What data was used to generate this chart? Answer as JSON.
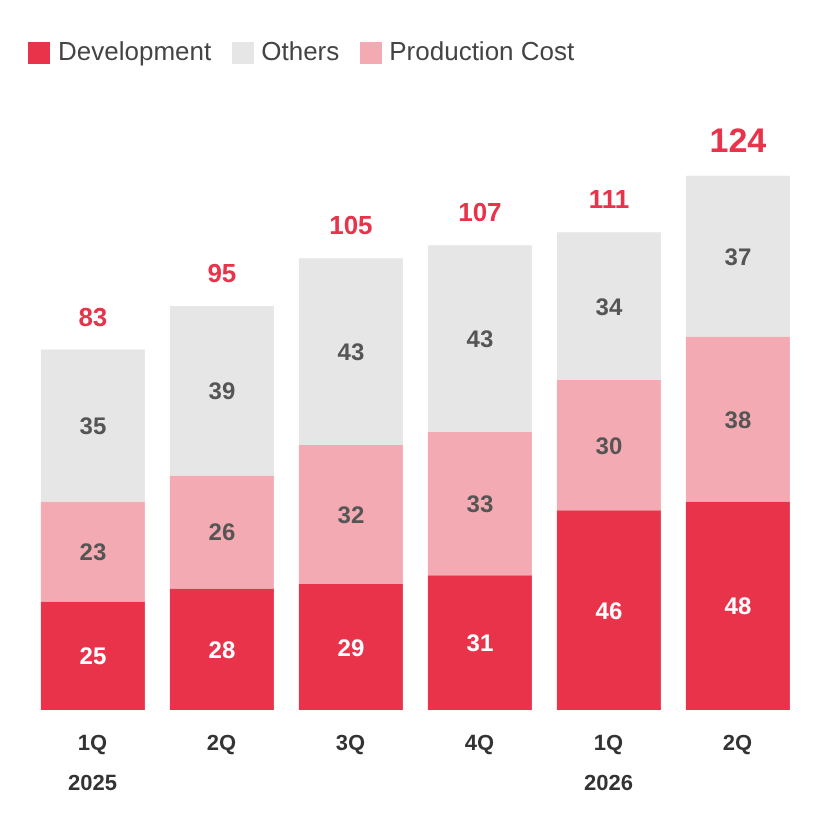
{
  "chart_data": {
    "type": "bar",
    "stacked": true,
    "categories": [
      "1Q\n2025",
      "2Q",
      "3Q",
      "4Q",
      "1Q\n2026",
      "2Q"
    ],
    "series": [
      {
        "name": "Development",
        "color": "#e8334a",
        "values": [
          25,
          28,
          29,
          31,
          46,
          48
        ]
      },
      {
        "name": "Production Cost",
        "color": "#f4aab2",
        "values": [
          23,
          26,
          32,
          33,
          30,
          38
        ]
      },
      {
        "name": "Others",
        "color": "#e6e6e6",
        "values": [
          35,
          39,
          43,
          43,
          34,
          37
        ]
      }
    ],
    "totals": [
      "83",
      "95",
      "105",
      "107",
      "111",
      "124"
    ],
    "data_labels": true,
    "legend": "top left",
    "grid": false
  }
}
